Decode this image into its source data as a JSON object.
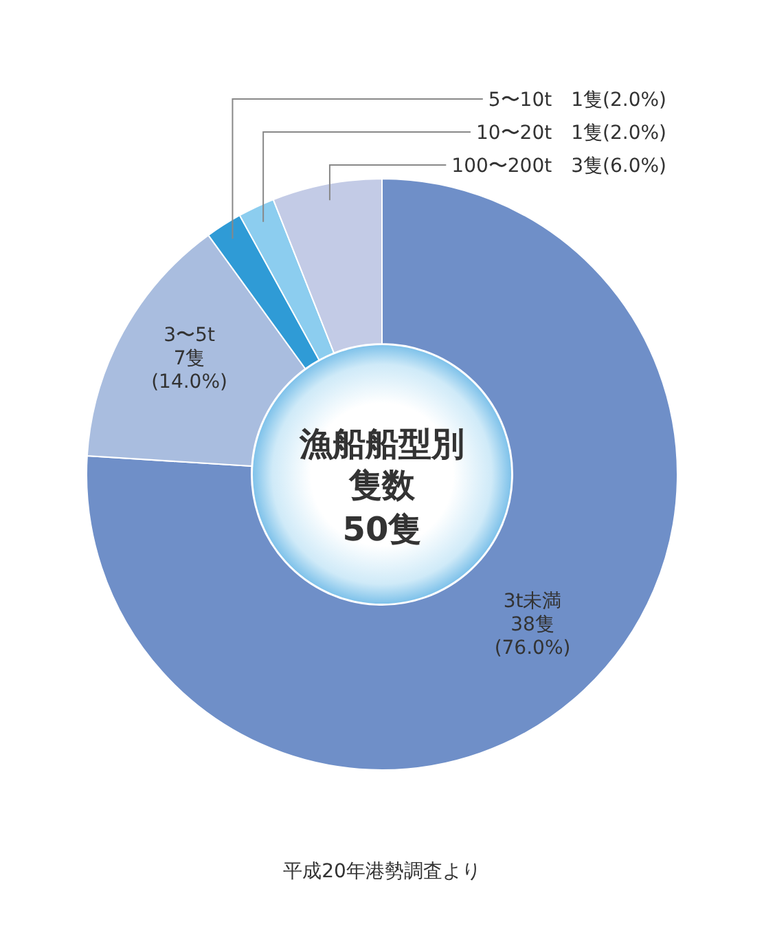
{
  "chart_data": {
    "type": "donut",
    "title": "漁船船型別隻数",
    "subtitle": "50隻",
    "categories": [
      "3t未満",
      "3〜5t",
      "5〜10t",
      "10〜20t",
      "100〜200t"
    ],
    "values": [
      38,
      7,
      1,
      1,
      3
    ],
    "colors": [
      "#6f8fc8",
      "#a9bddf",
      "#2f9bd6",
      "#8ccdef",
      "#c3cbe6"
    ],
    "value_labels": [
      "38隻(76.0%)",
      "7隻(14.0%)",
      "1隻(2.0%)",
      "1隻(2.0%)",
      "3隻(6.0%)"
    ],
    "annotations": [
      "平成20年港勢調査より"
    ]
  }
}
